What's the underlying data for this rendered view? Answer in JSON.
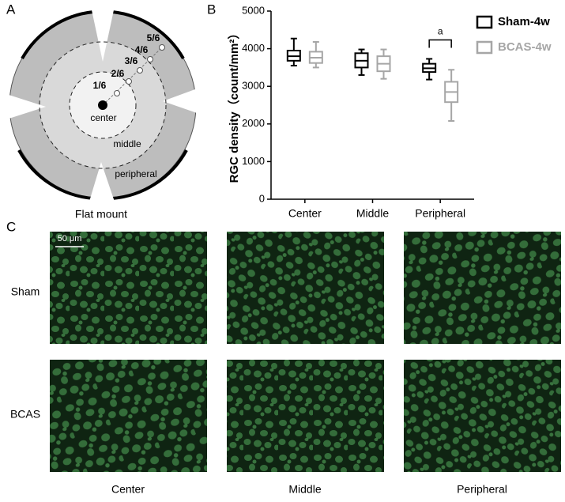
{
  "panel_a": {
    "label": "A",
    "caption": "Flat mount",
    "positions": [
      "1/6",
      "2/6",
      "3/6",
      "4/6",
      "5/6"
    ],
    "regions": [
      "center",
      "middle",
      "peripheral"
    ]
  },
  "chart_data": {
    "type": "box",
    "label": "B",
    "y_label": "RGC density（count/mm²）",
    "categories": [
      "Center",
      "Middle",
      "Peripheral"
    ],
    "series": [
      {
        "name": "Sham-4w",
        "color": "#000000",
        "values": [
          {
            "min": 3550,
            "q1": 3680,
            "median": 3800,
            "q3": 3950,
            "max": 4270
          },
          {
            "min": 3300,
            "q1": 3500,
            "median": 3680,
            "q3": 3880,
            "max": 3980
          },
          {
            "min": 3180,
            "q1": 3380,
            "median": 3480,
            "q3": 3600,
            "max": 3730
          }
        ]
      },
      {
        "name": "BCAS-4w",
        "color": "#a6a6a6",
        "values": [
          {
            "min": 3500,
            "q1": 3620,
            "median": 3760,
            "q3": 3920,
            "max": 4180
          },
          {
            "min": 3200,
            "q1": 3400,
            "median": 3600,
            "q3": 3800,
            "max": 3980
          },
          {
            "min": 2080,
            "q1": 2580,
            "median": 2850,
            "q3": 3120,
            "max": 3440
          }
        ]
      }
    ],
    "ylim": [
      0,
      5000
    ],
    "yticks": [
      0,
      1000,
      2000,
      3000,
      4000,
      5000
    ],
    "annotation": "a"
  },
  "panel_c": {
    "label": "C",
    "scale_bar": "50 μm",
    "rows": [
      "Sham",
      "BCAS"
    ],
    "columns": [
      "Center",
      "Middle",
      "Peripheral"
    ]
  }
}
